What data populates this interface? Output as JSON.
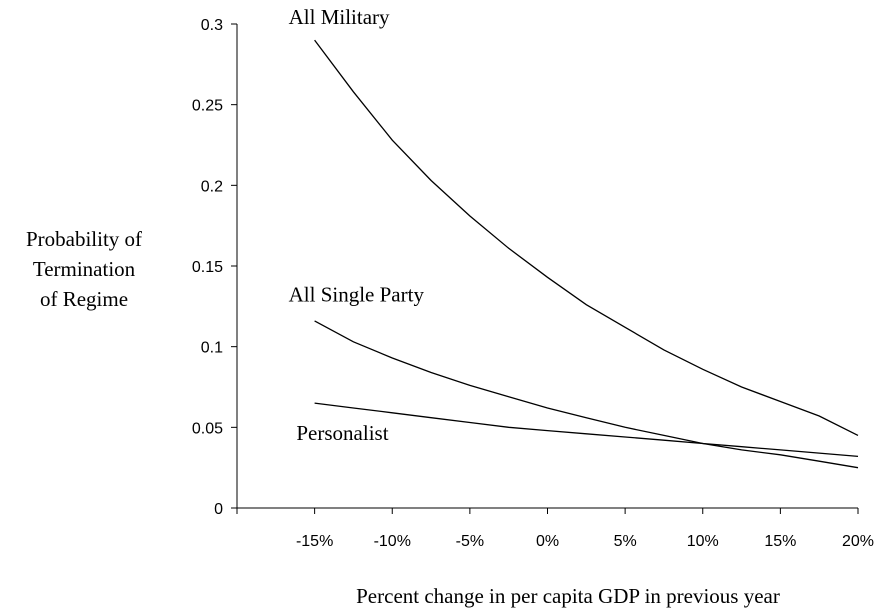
{
  "chart_data": {
    "type": "line",
    "title": "",
    "xlabel": "Percent change in per capita GDP in previous year",
    "ylabel_lines": [
      "Probability of",
      "Termination",
      "of Regime"
    ],
    "x": [
      -15,
      -12.5,
      -10,
      -7.5,
      -5,
      -2.5,
      0,
      2.5,
      5,
      7.5,
      10,
      12.5,
      15,
      17.5,
      20
    ],
    "xlim": [
      -20,
      20
    ],
    "x_ticks": [
      -15,
      -10,
      -5,
      0,
      5,
      10,
      15,
      20
    ],
    "x_tick_labels": [
      "-15%",
      "-10%",
      "-5%",
      "0%",
      "5%",
      "10%",
      "15%",
      "20%"
    ],
    "ylim": [
      0,
      0.3
    ],
    "y_ticks": [
      0,
      0.05,
      0.1,
      0.15,
      0.2,
      0.25,
      0.3
    ],
    "y_tick_labels": [
      "0",
      "0.05",
      "0.1",
      "0.15",
      "0.2",
      "0.25",
      "0.3"
    ],
    "grid": false,
    "legend": "none",
    "series": [
      {
        "name": "All Military",
        "label_at": [
          -15,
          0.3
        ],
        "values": [
          0.29,
          0.258,
          0.228,
          0.203,
          0.181,
          0.161,
          0.143,
          0.126,
          0.112,
          0.098,
          0.086,
          0.075,
          0.066,
          0.057,
          0.045
        ]
      },
      {
        "name": "All Single Party",
        "label_at": [
          -15,
          0.128
        ],
        "values": [
          0.116,
          0.103,
          0.093,
          0.084,
          0.076,
          0.069,
          0.062,
          0.056,
          0.05,
          0.045,
          0.04,
          0.036,
          0.033,
          0.029,
          0.025
        ]
      },
      {
        "name": "Personalist",
        "label_at": [
          -14.5,
          0.042
        ],
        "values": [
          0.065,
          0.062,
          0.059,
          0.056,
          0.053,
          0.05,
          0.048,
          0.046,
          0.044,
          0.042,
          0.04,
          0.038,
          0.036,
          0.034,
          0.032
        ]
      }
    ],
    "line_color": "#000000"
  }
}
